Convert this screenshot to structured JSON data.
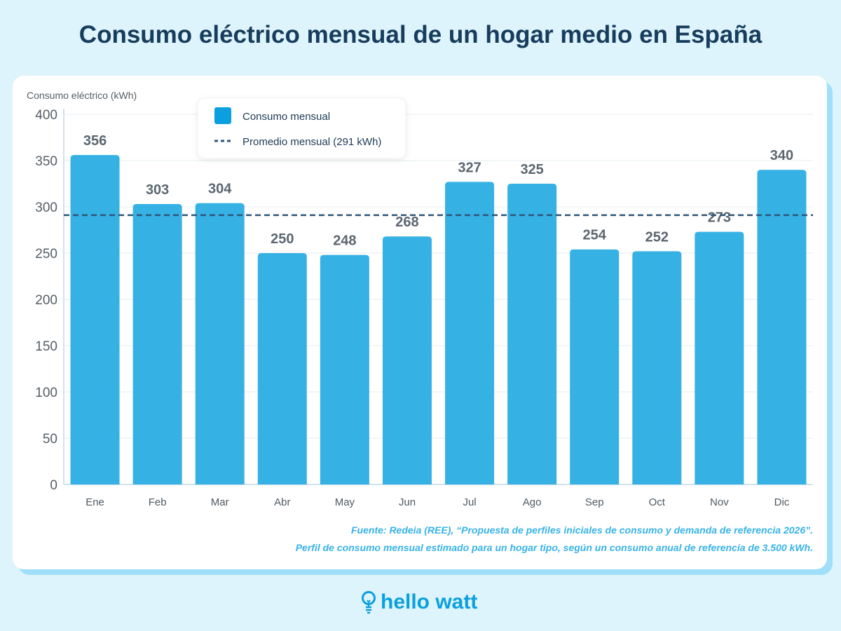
{
  "title": "Consumo eléctrico mensual de un hogar medio en España",
  "chart_data": {
    "type": "bar",
    "title": "Consumo eléctrico mensual de un hogar medio en España",
    "ylabel": "Consumo eléctrico (kWh)",
    "xlabel": "",
    "categories": [
      "Ene",
      "Feb",
      "Mar",
      "Abr",
      "May",
      "Jun",
      "Jul",
      "Ago",
      "Sep",
      "Oct",
      "Nov",
      "Dic"
    ],
    "values": [
      356,
      303,
      304,
      250,
      248,
      268,
      327,
      325,
      254,
      252,
      273,
      340
    ],
    "ylim": [
      0,
      400
    ],
    "yticks": [
      0,
      50,
      100,
      150,
      200,
      250,
      300,
      350,
      400
    ],
    "grid": true,
    "average": 291,
    "legend": {
      "placement": "top-center",
      "entries": [
        "Consumo mensual",
        "Promedio mensual (291 kWh)"
      ]
    },
    "colors": {
      "bar": "#36b1e4",
      "average": "#2f5678",
      "legend_swatch": "#0aa0e0"
    }
  },
  "source": {
    "line1": "Fuente: Redeia (REE), “Propuesta de perfiles iniciales de consumo y demanda de referencia 2026”.",
    "line2": "Perfil de consumo mensual estimado para un hogar tipo, según un consumo anual de referencia de 3.500 kWh."
  },
  "logo": {
    "text": "hello watt"
  }
}
